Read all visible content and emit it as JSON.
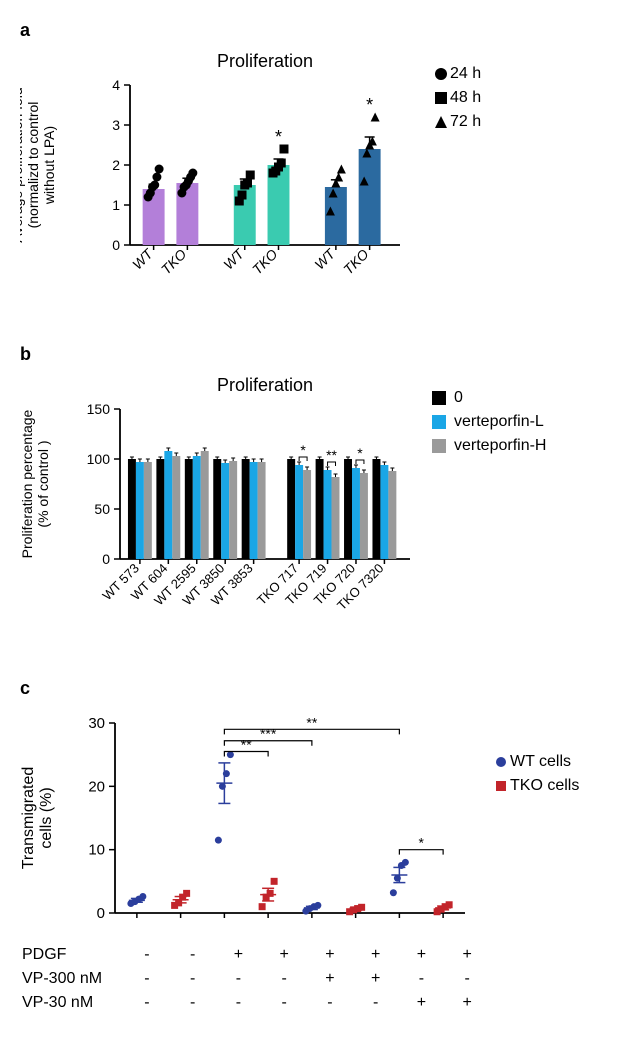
{
  "panelA": {
    "label": "a",
    "chart": {
      "type": "bar+scatter",
      "title": "Proliferation",
      "title_fontsize": 18,
      "ylabel": "Average proliferation fold\n(normalizd to control\nwithout LPA)",
      "label_fontsize": 14,
      "ylim": [
        0,
        4
      ],
      "yticks": [
        0,
        1,
        2,
        3,
        4
      ],
      "categories": [
        "WT",
        "TKO",
        "WT",
        "TKO",
        "WT",
        "TKO"
      ],
      "group_colors": [
        "#b37fd9",
        "#b37fd9",
        "#3acbb0",
        "#3acbb0",
        "#2b6aa0",
        "#2b6aa0"
      ],
      "bar_values": [
        1.4,
        1.55,
        1.5,
        2.0,
        1.45,
        2.4
      ],
      "bar_errors": [
        0.12,
        0.12,
        0.15,
        0.15,
        0.18,
        0.3
      ],
      "bar_width": 0.65,
      "group_gap": true,
      "marker_color": "#000000",
      "point_markers": [
        "circle",
        "circle",
        "square",
        "square",
        "triangle",
        "triangle"
      ],
      "points": [
        [
          1.2,
          1.3,
          1.45,
          1.5,
          1.7,
          1.9
        ],
        [
          1.3,
          1.45,
          1.5,
          1.6,
          1.7,
          1.8
        ],
        [
          1.1,
          1.25,
          1.5,
          1.55,
          1.75
        ],
        [
          1.8,
          1.85,
          1.95,
          2.05,
          2.4
        ],
        [
          0.85,
          1.3,
          1.55,
          1.7,
          1.9
        ],
        [
          1.6,
          2.3,
          2.5,
          2.6,
          3.2
        ]
      ],
      "annotations": [
        {
          "group_index": 3,
          "text": "*"
        },
        {
          "group_index": 5,
          "text": "*"
        }
      ],
      "legend": [
        {
          "marker": "circle",
          "label": "24 h"
        },
        {
          "marker": "square",
          "label": "48 h"
        },
        {
          "marker": "triangle",
          "label": "72 h"
        }
      ],
      "background_color": "#ffffff",
      "axis_color": "#000000"
    }
  },
  "panelB": {
    "label": "b",
    "chart": {
      "type": "grouped-bar",
      "title": "Proliferation",
      "title_fontsize": 18,
      "ylabel": "Proliferation percentage\n(% of control )",
      "label_fontsize": 14,
      "ylim": [
        0,
        150
      ],
      "yticks": [
        0,
        50,
        100,
        150
      ],
      "categories": [
        "WT 573",
        "WT 604",
        "WT 2595",
        "WT 3850",
        "WT 3853",
        "TKO 717",
        "TKO 719",
        "TKO 720",
        "TKO 7320"
      ],
      "group_gap_after_index": 4,
      "series": [
        {
          "name": "0",
          "color": "#000000",
          "values": [
            100,
            100,
            100,
            100,
            100,
            100,
            100,
            100,
            100
          ]
        },
        {
          "name": "verteporfin-L",
          "color": "#1aa6e6",
          "values": [
            97,
            108,
            103,
            96,
            97,
            94,
            89,
            91,
            94
          ]
        },
        {
          "name": "verteporfin-H",
          "color": "#9a9a9a",
          "values": [
            97,
            103,
            108,
            98,
            97,
            89,
            82,
            86,
            88
          ]
        }
      ],
      "errors": [
        [
          2,
          2,
          2,
          2,
          2,
          2,
          2,
          2,
          2
        ],
        [
          3,
          3,
          3,
          3,
          3,
          3,
          3,
          3,
          3
        ],
        [
          3,
          3,
          3,
          3,
          3,
          3,
          3,
          3,
          3
        ]
      ],
      "annotations": [
        {
          "cat_index": 5,
          "text": "*"
        },
        {
          "cat_index": 6,
          "text": "**"
        },
        {
          "cat_index": 7,
          "text": "*"
        }
      ],
      "bar_width": 0.28,
      "background_color": "#ffffff",
      "axis_color": "#000000"
    }
  },
  "panelC": {
    "label": "c",
    "chart": {
      "type": "scatter-conditions",
      "ylabel": "Transmigrated\ncells (%)",
      "label_fontsize": 16,
      "ylim": [
        0,
        30
      ],
      "yticks": [
        0,
        10,
        20,
        30
      ],
      "conditions_count": 8,
      "series": [
        {
          "name": "WT cells",
          "color": "#2b3e9c",
          "marker": "circle"
        },
        {
          "name": "TKO cells",
          "color": "#c2242a",
          "marker": "square"
        }
      ],
      "points": {
        "wt": [
          [
            1.5,
            1.8,
            2.2,
            2.6
          ],
          [],
          [
            11.5,
            20,
            22,
            25
          ],
          [],
          [
            0.3,
            0.7,
            1.0,
            1.2
          ],
          [],
          [
            3.2,
            5.5,
            7.5,
            8
          ],
          []
        ],
        "tko": [
          [],
          [
            1.2,
            1.6,
            2.5,
            3.1
          ],
          [],
          [
            1,
            2.5,
            3.1,
            5
          ],
          [],
          [
            0.2,
            0.5,
            0.7,
            0.9
          ],
          [],
          [
            0.2,
            0.6,
            1.0,
            1.3
          ]
        ]
      },
      "means": {
        "wt": [
          2.0,
          null,
          20.5,
          null,
          0.8,
          null,
          6.0,
          null
        ],
        "tko": [
          null,
          2.1,
          null,
          2.9,
          null,
          0.6,
          null,
          0.8
        ]
      },
      "sem": {
        "wt": [
          0.3,
          null,
          3.2,
          null,
          0.25,
          null,
          1.2,
          null
        ],
        "tko": [
          null,
          0.5,
          null,
          1.0,
          null,
          0.2,
          null,
          0.3
        ]
      },
      "comparisons": [
        {
          "from": 2,
          "to": 3,
          "text": "**",
          "y": 25.5
        },
        {
          "from": 2,
          "to": 4,
          "text": "***",
          "y": 27.2
        },
        {
          "from": 2,
          "to": 6,
          "text": "**",
          "y": 29
        },
        {
          "from": 6,
          "to": 7,
          "text": "*",
          "y": 10
        }
      ],
      "condition_rows": [
        {
          "label": "PDGF",
          "values": [
            "-",
            "-",
            "+",
            "+",
            "+",
            "+",
            "+",
            "+"
          ]
        },
        {
          "label": "VP-300 nM",
          "values": [
            "-",
            "-",
            "-",
            "-",
            "+",
            "+",
            "-",
            "-"
          ]
        },
        {
          "label": "VP-30 nM",
          "values": [
            "-",
            "-",
            "-",
            "-",
            "-",
            "-",
            "+",
            "+"
          ]
        }
      ],
      "background_color": "#ffffff",
      "axis_color": "#000000"
    }
  }
}
